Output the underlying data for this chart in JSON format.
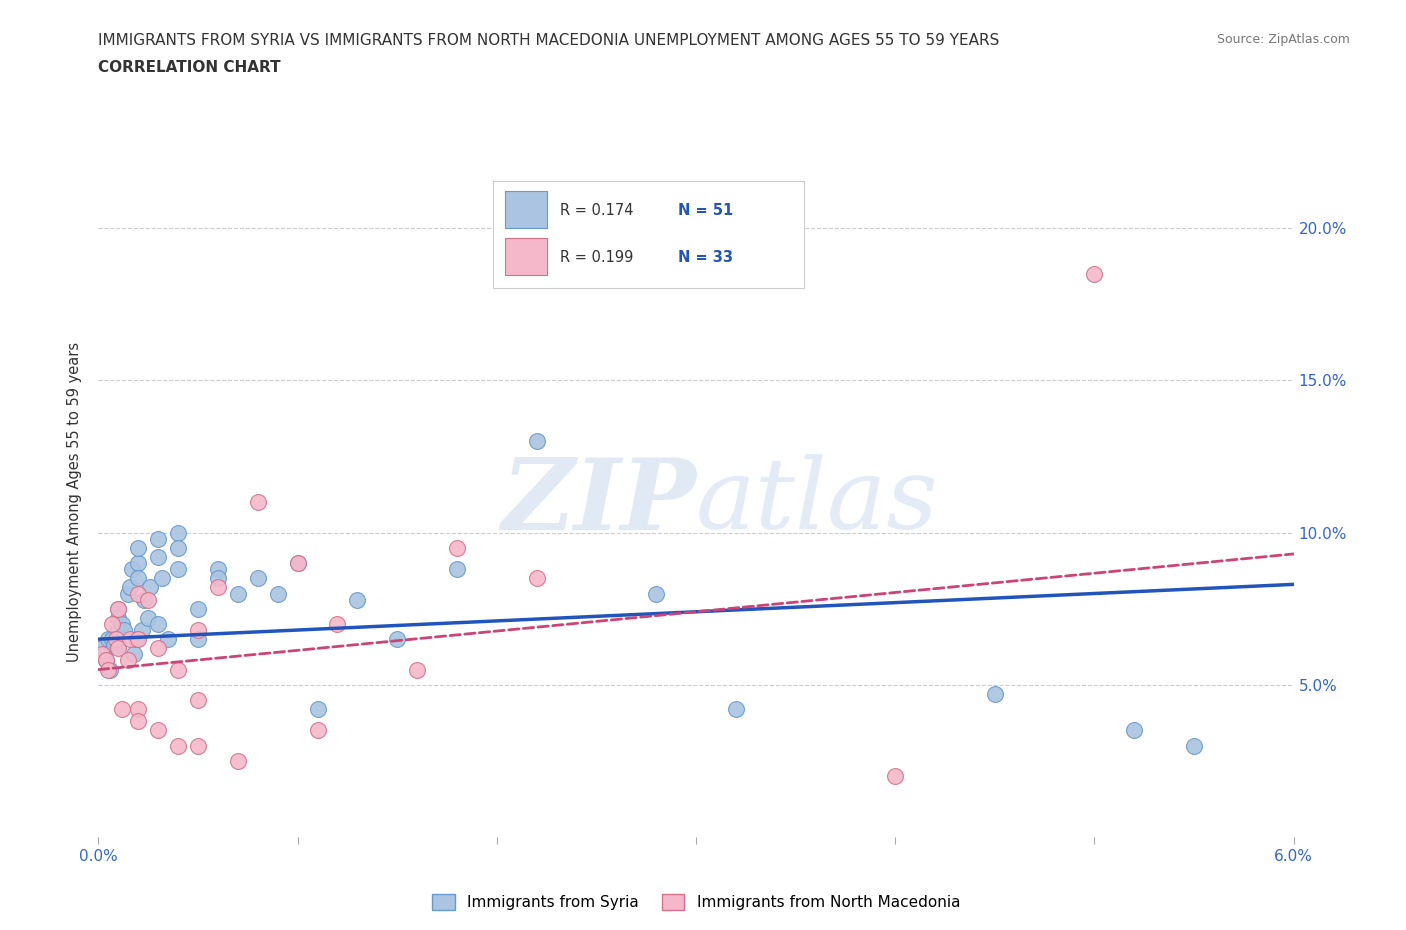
{
  "title_line1": "IMMIGRANTS FROM SYRIA VS IMMIGRANTS FROM NORTH MACEDONIA UNEMPLOYMENT AMONG AGES 55 TO 59 YEARS",
  "title_line2": "CORRELATION CHART",
  "source": "Source: ZipAtlas.com",
  "ylabel": "Unemployment Among Ages 55 to 59 years",
  "xlim": [
    0.0,
    0.06
  ],
  "ylim": [
    0.0,
    0.22
  ],
  "xticks": [
    0.0,
    0.01,
    0.02,
    0.03,
    0.04,
    0.05,
    0.06
  ],
  "xtick_labels": [
    "0.0%",
    "",
    "",
    "",
    "",
    "",
    "6.0%"
  ],
  "ytick_positions": [
    0.05,
    0.1,
    0.15,
    0.2
  ],
  "ytick_labels": [
    "5.0%",
    "10.0%",
    "15.0%",
    "20.0%"
  ],
  "syria_color": "#aac4e2",
  "syria_edge": "#6699cc",
  "macedonia_color": "#f5b8ca",
  "macedonia_edge": "#d4708a",
  "trend_syria_color": "#2255bb",
  "trend_macedonia_color": "#cc4477",
  "watermark_color": "#d0dff2",
  "legend_R_syria": "0.174",
  "legend_N_syria": "51",
  "legend_R_mac": "0.199",
  "legend_N_mac": "33",
  "syria_x": [
    0.0002,
    0.0003,
    0.0004,
    0.0005,
    0.0006,
    0.0007,
    0.0008,
    0.001,
    0.001,
    0.001,
    0.001,
    0.0012,
    0.0013,
    0.0015,
    0.0016,
    0.0017,
    0.0018,
    0.0019,
    0.002,
    0.002,
    0.002,
    0.0022,
    0.0023,
    0.0025,
    0.0026,
    0.003,
    0.003,
    0.003,
    0.0032,
    0.0035,
    0.004,
    0.004,
    0.004,
    0.005,
    0.005,
    0.006,
    0.006,
    0.007,
    0.008,
    0.009,
    0.01,
    0.011,
    0.013,
    0.015,
    0.018,
    0.022,
    0.028,
    0.032,
    0.045,
    0.052,
    0.055
  ],
  "syria_y": [
    0.062,
    0.06,
    0.058,
    0.065,
    0.055,
    0.065,
    0.063,
    0.075,
    0.068,
    0.072,
    0.063,
    0.07,
    0.068,
    0.08,
    0.082,
    0.088,
    0.06,
    0.065,
    0.09,
    0.095,
    0.085,
    0.068,
    0.078,
    0.072,
    0.082,
    0.092,
    0.098,
    0.07,
    0.085,
    0.065,
    0.1,
    0.095,
    0.088,
    0.075,
    0.065,
    0.088,
    0.085,
    0.08,
    0.085,
    0.08,
    0.09,
    0.042,
    0.078,
    0.065,
    0.088,
    0.13,
    0.08,
    0.042,
    0.047,
    0.035,
    0.03
  ],
  "macedonia_x": [
    0.0002,
    0.0004,
    0.0005,
    0.0007,
    0.0009,
    0.001,
    0.001,
    0.0012,
    0.0015,
    0.0016,
    0.002,
    0.002,
    0.002,
    0.002,
    0.0025,
    0.003,
    0.003,
    0.004,
    0.004,
    0.005,
    0.005,
    0.005,
    0.006,
    0.007,
    0.008,
    0.01,
    0.011,
    0.012,
    0.016,
    0.018,
    0.022,
    0.04,
    0.05
  ],
  "macedonia_y": [
    0.06,
    0.058,
    0.055,
    0.07,
    0.065,
    0.062,
    0.075,
    0.042,
    0.058,
    0.065,
    0.08,
    0.065,
    0.042,
    0.038,
    0.078,
    0.062,
    0.035,
    0.03,
    0.055,
    0.068,
    0.03,
    0.045,
    0.082,
    0.025,
    0.11,
    0.09,
    0.035,
    0.07,
    0.055,
    0.095,
    0.085,
    0.02,
    0.185
  ]
}
